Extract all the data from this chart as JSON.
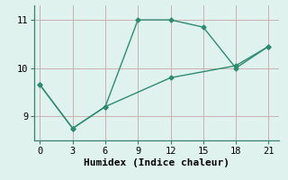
{
  "line1_x": [
    0,
    3,
    6,
    9,
    12,
    15,
    18,
    21
  ],
  "line1_y": [
    9.65,
    8.75,
    9.2,
    11.0,
    11.0,
    10.85,
    10.0,
    10.45
  ],
  "line2_x": [
    0,
    3,
    6,
    12,
    18,
    21
  ],
  "line2_y": [
    9.65,
    8.75,
    9.2,
    9.8,
    10.05,
    10.45
  ],
  "color": "#2e8b70",
  "bg_color": "#dff2ee",
  "grid_color": "#c9b0b0",
  "xlabel": "Humidex (Indice chaleur)",
  "xlim": [
    -0.5,
    22
  ],
  "ylim": [
    8.5,
    11.3
  ],
  "xticks": [
    0,
    3,
    6,
    9,
    12,
    15,
    18,
    21
  ],
  "yticks": [
    9,
    10,
    11
  ],
  "marker": "D",
  "markersize": 2.5,
  "linewidth": 1.0,
  "xlabel_fontsize": 8,
  "tick_fontsize": 7.5,
  "spine_color": "#3a8070"
}
